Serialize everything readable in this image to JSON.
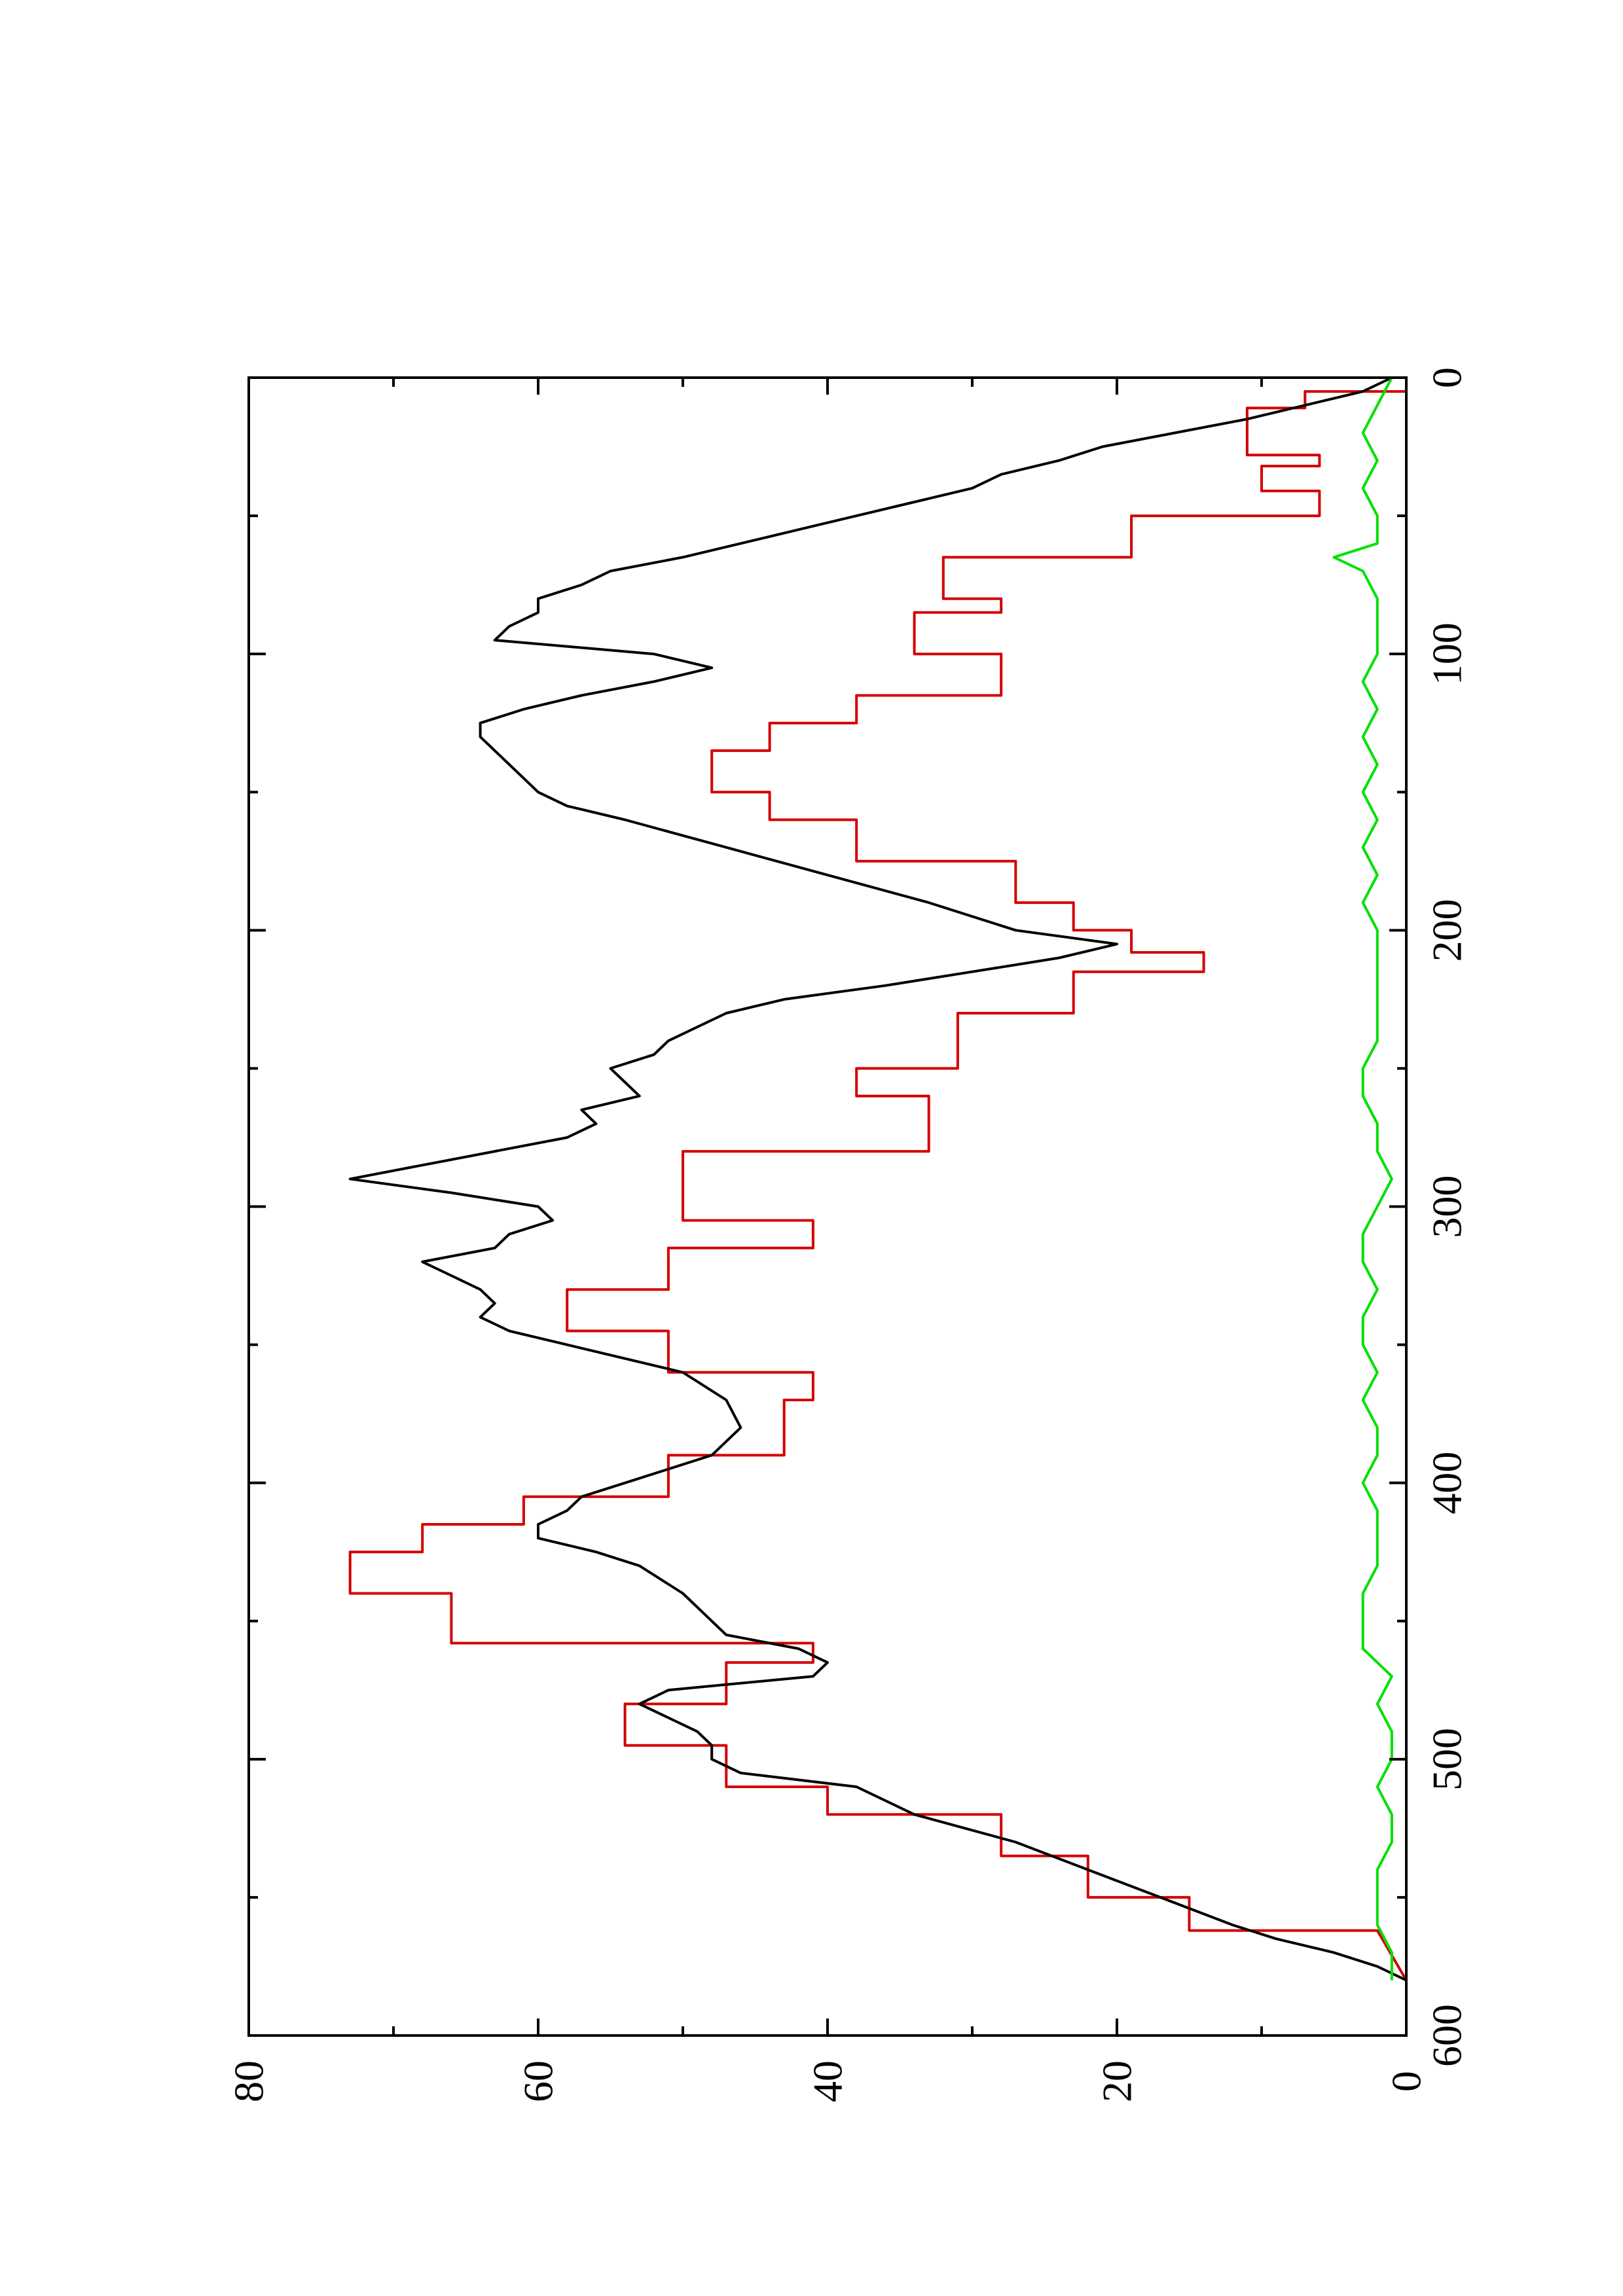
{
  "chart_data": {
    "type": "line",
    "orientation": "rotated-90-ccw",
    "title": "",
    "xlabel": "",
    "ylabel": "",
    "xlim": [
      0,
      600
    ],
    "ylim": [
      0,
      80
    ],
    "x_ticks": [
      0,
      100,
      200,
      300,
      400,
      500,
      600
    ],
    "x_minor_ticks": [
      50,
      150,
      250,
      350,
      450,
      550
    ],
    "y_ticks": [
      0,
      20,
      40,
      60,
      80
    ],
    "y_minor_ticks": [
      10,
      30,
      50,
      70
    ],
    "x_tick_labels": [
      "0",
      "100",
      "200",
      "300",
      "400",
      "500",
      "600"
    ],
    "y_tick_labels": [
      "0",
      "20",
      "40",
      "60",
      "80"
    ],
    "grid": false,
    "legend": "none",
    "series": [
      {
        "color": "#d40000",
        "style": "step",
        "x": [
          0,
          5,
          5,
          11,
          11,
          28,
          28,
          32,
          32,
          41,
          41,
          50,
          50,
          65,
          65,
          80,
          80,
          85,
          85,
          100,
          100,
          115,
          115,
          125,
          125,
          135,
          135,
          150,
          150,
          160,
          160,
          175,
          175,
          190,
          190,
          200,
          200,
          208,
          208,
          215,
          215,
          230,
          230,
          250,
          250,
          260,
          260,
          280,
          280,
          305,
          305,
          315,
          315,
          330,
          330,
          345,
          345,
          360,
          360,
          370,
          370,
          390,
          390,
          405,
          405,
          415,
          415,
          425,
          425,
          440,
          440,
          458,
          458,
          465,
          465,
          480,
          480,
          495,
          495,
          510,
          510,
          520,
          520,
          535,
          535,
          550,
          550,
          562,
          562,
          580
        ],
        "y": [
          0,
          0,
          7,
          7,
          11,
          11,
          6,
          6,
          10,
          10,
          6,
          6,
          19,
          19,
          32,
          32,
          28,
          28,
          34,
          34,
          28,
          28,
          38,
          38,
          44,
          44,
          48,
          48,
          44,
          44,
          38,
          38,
          27,
          27,
          23,
          23,
          19,
          19,
          14,
          14,
          23,
          23,
          31,
          31,
          38,
          38,
          33,
          33,
          50,
          50,
          41,
          41,
          51,
          51,
          58,
          58,
          51,
          51,
          41,
          41,
          43,
          43,
          51,
          51,
          61,
          61,
          68,
          68,
          73,
          73,
          66,
          66,
          41,
          41,
          47,
          47,
          54,
          54,
          47,
          47,
          40,
          40,
          28,
          28,
          22,
          22,
          15,
          15,
          2,
          0
        ]
      },
      {
        "color": "#000000",
        "style": "line",
        "x": [
          0,
          5,
          10,
          15,
          20,
          25,
          30,
          35,
          40,
          45,
          50,
          55,
          60,
          65,
          70,
          75,
          80,
          85,
          90,
          95,
          100,
          105,
          110,
          115,
          120,
          125,
          130,
          135,
          140,
          145,
          150,
          155,
          160,
          170,
          180,
          190,
          200,
          205,
          210,
          215,
          220,
          225,
          230,
          240,
          245,
          250,
          255,
          260,
          265,
          270,
          275,
          280,
          285,
          290,
          295,
          300,
          305,
          310,
          315,
          320,
          325,
          330,
          335,
          340,
          345,
          350,
          360,
          370,
          380,
          390,
          400,
          405,
          410,
          415,
          420,
          425,
          430,
          440,
          450,
          455,
          460,
          465,
          470,
          475,
          480,
          485,
          490,
          495,
          500,
          505,
          510,
          520,
          530,
          540,
          550,
          560,
          565,
          570,
          575,
          580
        ],
        "y": [
          1,
          3,
          7,
          11,
          16,
          21,
          24,
          28,
          30,
          34,
          38,
          42,
          46,
          50,
          55,
          57,
          60,
          60,
          62,
          63,
          52,
          48,
          52,
          57,
          61,
          64,
          64,
          63,
          62,
          61,
          60,
          58,
          54,
          47,
          40,
          33,
          27,
          20,
          24,
          30,
          36,
          43,
          47,
          51,
          52,
          55,
          54,
          53,
          57,
          56,
          58,
          63,
          68,
          73,
          66,
          60,
          59,
          62,
          63,
          68,
          66,
          64,
          63,
          64,
          62,
          58,
          50,
          47,
          46,
          48,
          54,
          57,
          58,
          60,
          60,
          56,
          53,
          50,
          48,
          47,
          42,
          40,
          41,
          51,
          53,
          51,
          49,
          48,
          48,
          46,
          38,
          34,
          27,
          22,
          17,
          12,
          9,
          5,
          2,
          0
        ]
      },
      {
        "color": "#00e000",
        "style": "line",
        "x": [
          0,
          10,
          20,
          30,
          40,
          50,
          60,
          65,
          70,
          80,
          90,
          100,
          110,
          120,
          130,
          140,
          150,
          160,
          170,
          180,
          190,
          200,
          210,
          220,
          230,
          240,
          250,
          260,
          270,
          280,
          290,
          300,
          310,
          320,
          330,
          340,
          350,
          360,
          370,
          380,
          390,
          400,
          410,
          420,
          430,
          440,
          450,
          460,
          470,
          480,
          490,
          500,
          510,
          520,
          530,
          540,
          550,
          560,
          570,
          580
        ],
        "y": [
          1,
          2,
          3,
          2,
          3,
          2,
          2,
          5,
          3,
          2,
          2,
          2,
          3,
          2,
          3,
          2,
          3,
          2,
          3,
          2,
          3,
          2,
          2,
          2,
          2,
          2,
          3,
          3,
          2,
          2,
          1,
          2,
          3,
          3,
          2,
          3,
          3,
          2,
          3,
          2,
          2,
          3,
          2,
          2,
          2,
          3,
          3,
          3,
          1,
          2,
          1,
          1,
          2,
          1,
          1,
          2,
          2,
          2,
          1,
          1
        ]
      }
    ]
  }
}
